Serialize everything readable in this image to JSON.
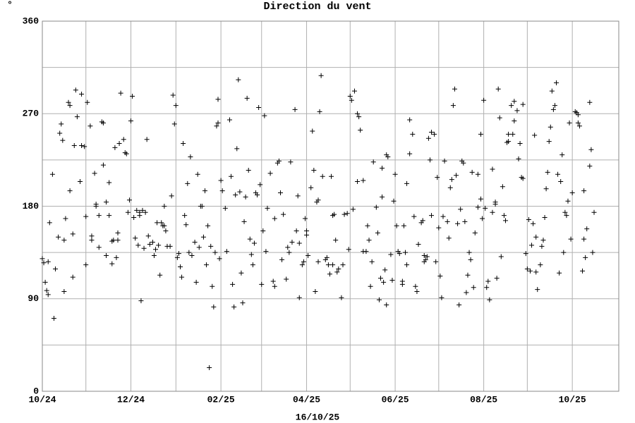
{
  "chart_data": {
    "type": "scatter",
    "title": "Direction du vent",
    "unit_label": "°",
    "footer": "16/10/25",
    "xlim": [
      0,
      397
    ],
    "xticks": [
      {
        "value": 0,
        "label": "10/24"
      },
      {
        "value": 61,
        "label": "12/24"
      },
      {
        "value": 123,
        "label": "02/25"
      },
      {
        "value": 182,
        "label": "04/25"
      },
      {
        "value": 243,
        "label": "06/25"
      },
      {
        "value": 304,
        "label": "08/25"
      },
      {
        "value": 365,
        "label": "10/25"
      }
    ],
    "xminor": [
      30,
      92,
      151,
      212,
      273,
      334
    ],
    "ylim": [
      0,
      360
    ],
    "yticks": [
      0,
      90,
      180,
      270,
      360
    ],
    "yminor": [
      45,
      135,
      225,
      315
    ],
    "grid": true,
    "color": "#000000",
    "x": [
      0,
      1,
      2,
      3,
      4,
      4,
      5,
      7,
      8,
      9,
      11,
      12,
      13,
      14,
      15,
      15,
      16,
      18,
      19,
      19,
      21,
      21,
      22,
      23,
      24,
      26,
      27,
      27,
      29,
      30,
      30,
      31,
      33,
      34,
      34,
      36,
      37,
      37,
      39,
      39,
      41,
      42,
      42,
      44,
      44,
      46,
      46,
      48,
      48,
      49,
      50,
      51,
      52,
      52,
      53,
      54,
      56,
      57,
      58,
      59,
      60,
      61,
      62,
      63,
      64,
      65,
      66,
      67,
      67,
      68,
      69,
      70,
      71,
      72,
      73,
      74,
      76,
      77,
      78,
      79,
      80,
      81,
      82,
      83,
      84,
      84,
      85,
      86,
      88,
      89,
      90,
      91,
      92,
      93,
      94,
      95,
      96,
      97,
      98,
      99,
      100,
      101,
      102,
      103,
      105,
      106,
      107,
      108,
      109,
      110,
      111,
      112,
      113,
      114,
      115,
      116,
      117,
      118,
      119,
      120,
      121,
      121,
      122,
      123,
      124,
      126,
      127,
      129,
      130,
      131,
      132,
      133,
      134,
      135,
      136,
      137,
      138,
      139,
      140,
      141,
      142,
      143,
      144,
      145,
      146,
      147,
      148,
      149,
      150,
      151,
      152,
      153,
      154,
      155,
      157,
      159,
      160,
      160,
      162,
      163,
      164,
      165,
      166,
      168,
      169,
      170,
      171,
      172,
      174,
      175,
      176,
      177,
      177,
      179,
      180,
      181,
      182,
      182,
      183,
      185,
      186,
      187,
      188,
      189,
      190,
      190,
      191,
      192,
      193,
      195,
      196,
      197,
      198,
      199,
      200,
      200,
      201,
      202,
      203,
      204,
      206,
      207,
      208,
      210,
      211,
      212,
      213,
      214,
      215,
      217,
      217,
      218,
      219,
      221,
      221,
      223,
      224,
      225,
      226,
      227,
      228,
      230,
      231,
      232,
      233,
      234,
      234,
      235,
      236,
      237,
      237,
      238,
      240,
      241,
      242,
      243,
      244,
      245,
      246,
      248,
      248,
      249,
      250,
      251,
      251,
      253,
      253,
      255,
      256,
      257,
      258,
      259,
      261,
      262,
      263,
      263,
      264,
      265,
      266,
      267,
      268,
      268,
      270,
      271,
      272,
      273,
      274,
      275,
      276,
      277,
      279,
      280,
      281,
      282,
      283,
      284,
      285,
      286,
      287,
      288,
      289,
      290,
      291,
      292,
      293,
      294,
      295,
      296,
      297,
      298,
      300,
      300,
      302,
      302,
      303,
      304,
      305,
      306,
      307,
      308,
      310,
      310,
      312,
      312,
      313,
      314,
      315,
      316,
      317,
      318,
      319,
      320,
      321,
      321,
      323,
      324,
      325,
      325,
      327,
      328,
      329,
      330,
      331,
      331,
      333,
      334,
      335,
      336,
      337,
      338,
      339,
      340,
      340,
      341,
      343,
      344,
      345,
      346,
      347,
      348,
      349,
      350,
      351,
      352,
      353,
      354,
      355,
      356,
      357,
      358,
      359,
      360,
      361,
      362,
      363,
      364,
      365,
      367,
      368,
      369,
      369,
      370,
      372,
      373,
      373,
      374,
      375,
      377,
      377,
      378,
      379,
      380
    ],
    "values": [
      129,
      125,
      106,
      98,
      94,
      126,
      164,
      211,
      71,
      119,
      150,
      251,
      260,
      244,
      147,
      97,
      168,
      281,
      278,
      195,
      111,
      153,
      239,
      293,
      267,
      204,
      239,
      289,
      238,
      123,
      170,
      281,
      258,
      147,
      151,
      212,
      182,
      180,
      140,
      171,
      262,
      261,
      220,
      184,
      132,
      171,
      203,
      146,
      124,
      147,
      237,
      130,
      147,
      154,
      241,
      290,
      245,
      232,
      231,
      174,
      186,
      263,
      287,
      169,
      149,
      176,
      142,
      171,
      174,
      88,
      176,
      139,
      174,
      245,
      151,
      143,
      145,
      132,
      138,
      164,
      142,
      113,
      164,
      161,
      180,
      161,
      156,
      141,
      141,
      190,
      288,
      260,
      278,
      130,
      134,
      121,
      111,
      241,
      171,
      162,
      202,
      135,
      228,
      132,
      145,
      106,
      211,
      140,
      180,
      180,
      150,
      195,
      123,
      161,
      23,
      141,
      102,
      82,
      135,
      258,
      284,
      261,
      129,
      205,
      195,
      178,
      136,
      264,
      209,
      104,
      82,
      191,
      236,
      303,
      194,
      115,
      86,
      165,
      189,
      285,
      215,
      148,
      133,
      123,
      144,
      193,
      191,
      276,
      201,
      104,
      156,
      268,
      136,
      178,
      212,
      107,
      102,
      168,
      222,
      224,
      193,
      128,
      172,
      109,
      140,
      135,
      223,
      145,
      274,
      156,
      190,
      91,
      144,
      123,
      126,
      168,
      152,
      156,
      132,
      198,
      253,
      215,
      97,
      184,
      186,
      126,
      272,
      307,
      209,
      128,
      130,
      123,
      114,
      209,
      171,
      123,
      172,
      147,
      116,
      119,
      91,
      123,
      172,
      173,
      138,
      287,
      283,
      177,
      292,
      204,
      270,
      267,
      254,
      136,
      205,
      136,
      161,
      147,
      102,
      126,
      223,
      179,
      154,
      89,
      110,
      189,
      217,
      106,
      118,
      84,
      230,
      228,
      133,
      108,
      185,
      211,
      161,
      136,
      134,
      107,
      104,
      161,
      135,
      123,
      202,
      231,
      264,
      250,
      170,
      102,
      97,
      143,
      164,
      166,
      132,
      126,
      128,
      131,
      246,
      225,
      171,
      252,
      250,
      126,
      208,
      159,
      112,
      91,
      170,
      224,
      165,
      149,
      198,
      206,
      278,
      294,
      210,
      163,
      84,
      177,
      224,
      222,
      165,
      96,
      113,
      135,
      128,
      213,
      101,
      154,
      179,
      211,
      187,
      250,
      168,
      283,
      178,
      101,
      107,
      89,
      216,
      174,
      182,
      184,
      110,
      294,
      266,
      131,
      199,
      171,
      166,
      242,
      243,
      250,
      278,
      250,
      263,
      282,
      273,
      226,
      241,
      208,
      279,
      207,
      134,
      119,
      167,
      117,
      142,
      163,
      249,
      116,
      150,
      99,
      123,
      141,
      147,
      169,
      197,
      213,
      243,
      257,
      292,
      274,
      278,
      300,
      211,
      115,
      204,
      230,
      135,
      174,
      171,
      185,
      261,
      148,
      193,
      272,
      271,
      269,
      261,
      258,
      117,
      148,
      195,
      130,
      158,
      219,
      281,
      235,
      135,
      174
    ]
  }
}
